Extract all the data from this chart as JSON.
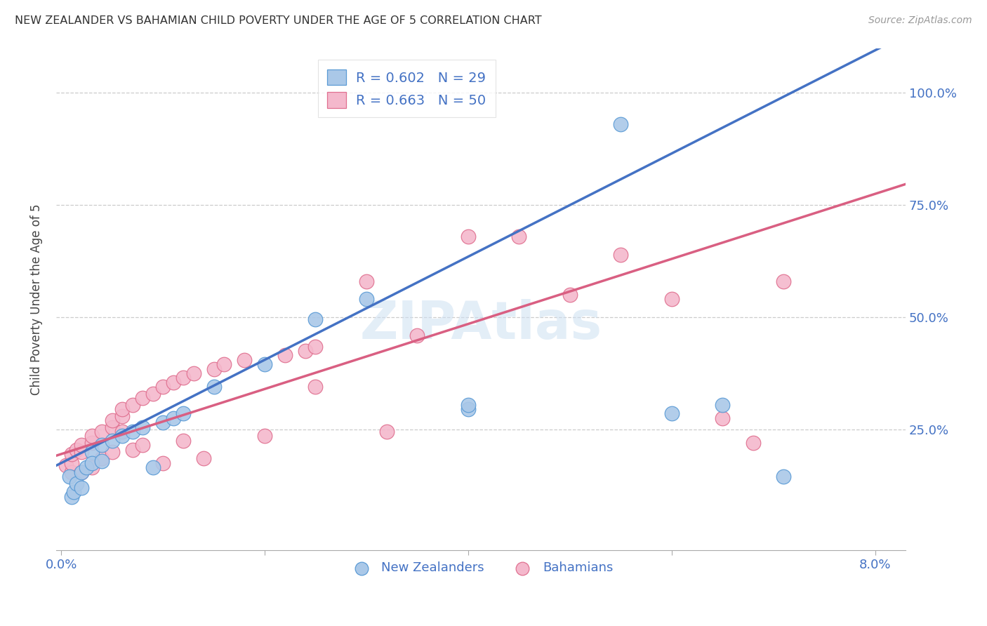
{
  "title": "NEW ZEALANDER VS BAHAMIAN CHILD POVERTY UNDER THE AGE OF 5 CORRELATION CHART",
  "source": "Source: ZipAtlas.com",
  "ylabel": "Child Poverty Under the Age of 5",
  "xlim": [
    -0.0005,
    0.083
  ],
  "ylim": [
    -0.02,
    1.1
  ],
  "x_ticks": [
    0.0,
    0.02,
    0.04,
    0.06,
    0.08
  ],
  "x_tick_labels": [
    "0.0%",
    "",
    "",
    "",
    "8.0%"
  ],
  "y_ticks": [
    0.25,
    0.5,
    0.75,
    1.0
  ],
  "y_tick_labels": [
    "25.0%",
    "50.0%",
    "75.0%",
    "100.0%"
  ],
  "nz_color": "#aac8e8",
  "bah_color": "#f4b8cc",
  "nz_edge_color": "#5b9bd5",
  "bah_edge_color": "#e07090",
  "nz_line_color": "#4472c4",
  "bah_line_color": "#d95f82",
  "nz_R": 0.602,
  "nz_N": 29,
  "bah_R": 0.663,
  "bah_N": 50,
  "nz_intercept": 0.175,
  "nz_slope": 11.5,
  "bah_intercept": 0.195,
  "bah_slope": 7.25,
  "nz_x": [
    0.0008,
    0.001,
    0.0012,
    0.0015,
    0.002,
    0.002,
    0.0025,
    0.003,
    0.003,
    0.004,
    0.004,
    0.005,
    0.006,
    0.007,
    0.008,
    0.009,
    0.01,
    0.011,
    0.012,
    0.015,
    0.02,
    0.025,
    0.03,
    0.04,
    0.04,
    0.055,
    0.06,
    0.065,
    0.071
  ],
  "nz_y": [
    0.145,
    0.1,
    0.11,
    0.13,
    0.155,
    0.12,
    0.165,
    0.2,
    0.175,
    0.215,
    0.18,
    0.225,
    0.235,
    0.245,
    0.255,
    0.165,
    0.265,
    0.275,
    0.285,
    0.345,
    0.395,
    0.495,
    0.54,
    0.295,
    0.305,
    0.93,
    0.285,
    0.305,
    0.145
  ],
  "bah_x": [
    0.0005,
    0.001,
    0.001,
    0.001,
    0.0015,
    0.002,
    0.002,
    0.002,
    0.003,
    0.003,
    0.003,
    0.004,
    0.004,
    0.005,
    0.005,
    0.005,
    0.006,
    0.006,
    0.006,
    0.007,
    0.007,
    0.008,
    0.008,
    0.009,
    0.01,
    0.01,
    0.011,
    0.012,
    0.012,
    0.013,
    0.014,
    0.015,
    0.016,
    0.018,
    0.02,
    0.022,
    0.024,
    0.025,
    0.025,
    0.03,
    0.032,
    0.035,
    0.04,
    0.045,
    0.05,
    0.055,
    0.06,
    0.065,
    0.068,
    0.071
  ],
  "bah_y": [
    0.17,
    0.155,
    0.175,
    0.195,
    0.205,
    0.155,
    0.2,
    0.215,
    0.165,
    0.22,
    0.235,
    0.245,
    0.185,
    0.2,
    0.255,
    0.27,
    0.245,
    0.28,
    0.295,
    0.205,
    0.305,
    0.215,
    0.32,
    0.33,
    0.175,
    0.345,
    0.355,
    0.225,
    0.365,
    0.375,
    0.185,
    0.385,
    0.395,
    0.405,
    0.235,
    0.415,
    0.425,
    0.435,
    0.345,
    0.58,
    0.245,
    0.46,
    0.68,
    0.68,
    0.55,
    0.64,
    0.54,
    0.275,
    0.22,
    0.58
  ]
}
